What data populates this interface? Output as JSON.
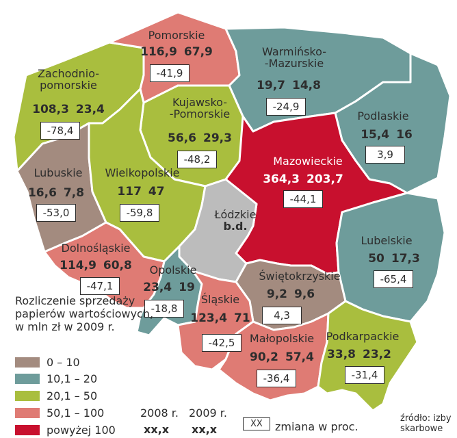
{
  "colors": {
    "c0_10": "#a38b7f",
    "c10_20": "#6e9c9b",
    "c20_50": "#a9be3e",
    "c50_100": "#df7b74",
    "c100p": "#c8102e",
    "nodata": "#bcbcbc"
  },
  "regions": [
    {
      "id": "zachodniopomorskie",
      "name_l1": "Zachodnio-",
      "name_l2": "pomorskie",
      "v2008": "108,3",
      "v2009": "23,4",
      "change": "-78,4",
      "category": "c20_50"
    },
    {
      "id": "pomorskie",
      "name_l1": "Pomorskie",
      "name_l2": "",
      "v2008": "116,9",
      "v2009": "67,9",
      "change": "-41,9",
      "category": "c50_100"
    },
    {
      "id": "warminsko",
      "name_l1": "Warmińsko-",
      "name_l2": "-Mazurskie",
      "v2008": "19,7",
      "v2009": "14,8",
      "change": "-24,9",
      "category": "c10_20"
    },
    {
      "id": "kujawsko",
      "name_l1": "Kujawsko-",
      "name_l2": "-Pomorskie",
      "v2008": "56,6",
      "v2009": "29,3",
      "change": "-48,2",
      "category": "c20_50"
    },
    {
      "id": "podlaskie",
      "name_l1": "Podlaskie",
      "name_l2": "",
      "v2008": "15,4",
      "v2009": "16",
      "change": "3,9",
      "category": "c10_20"
    },
    {
      "id": "lubuskie",
      "name_l1": "Lubuskie",
      "name_l2": "",
      "v2008": "16,6",
      "v2009": "7,8",
      "change": "-53,0",
      "category": "c0_10"
    },
    {
      "id": "wielkopolskie",
      "name_l1": "Wielkopolskie",
      "name_l2": "",
      "v2008": "117",
      "v2009": "47",
      "change": "-59,8",
      "category": "c20_50"
    },
    {
      "id": "mazowieckie",
      "name_l1": "Mazowieckie",
      "name_l2": "",
      "v2008": "364,3",
      "v2009": "203,7",
      "change": "-44,1",
      "category": "c100p"
    },
    {
      "id": "lodzkie",
      "name_l1": "Łódzkie",
      "name_l2": "b.d.",
      "v2008": "",
      "v2009": "",
      "change": "",
      "category": "nodata"
    },
    {
      "id": "lubelskie",
      "name_l1": "Lubelskie",
      "name_l2": "",
      "v2008": "50",
      "v2009": "17,3",
      "change": "-65,4",
      "category": "c10_20"
    },
    {
      "id": "dolnoslaskie",
      "name_l1": "Dolnośląskie",
      "name_l2": "",
      "v2008": "114,9",
      "v2009": "60,8",
      "change": "-47,1",
      "category": "c50_100"
    },
    {
      "id": "opolskie",
      "name_l1": "Opolskie",
      "name_l2": "",
      "v2008": "23,4",
      "v2009": "19",
      "change": "-18,8",
      "category": "c10_20"
    },
    {
      "id": "swietokrzyskie",
      "name_l1": "Świętokrzyskie",
      "name_l2": "",
      "v2008": "9,2",
      "v2009": "9,6",
      "change": "4,3",
      "category": "c0_10"
    },
    {
      "id": "slaskie",
      "name_l1": "Śląskie",
      "name_l2": "",
      "v2008": "123,4",
      "v2009": "71",
      "change": "-42,5",
      "category": "c50_100"
    },
    {
      "id": "malopolskie",
      "name_l1": "Małopolskie",
      "name_l2": "",
      "v2008": "90,2",
      "v2009": "57,4",
      "change": "-36,4",
      "category": "c50_100"
    },
    {
      "id": "podkarpackie",
      "name_l1": "Podkarpackie",
      "name_l2": "",
      "v2008": "33,8",
      "v2009": "23,2",
      "change": "-31,4",
      "category": "c20_50"
    }
  ],
  "legend": {
    "title": "Rozliczenie sprzedaży papierów wartościowych, w mln zł w 2009 r.",
    "items": [
      {
        "label": "0 – 10",
        "category": "c0_10"
      },
      {
        "label": "10,1 – 20",
        "category": "c10_20"
      },
      {
        "label": "20,1 – 50",
        "category": "c20_50"
      },
      {
        "label": "50,1 – 100",
        "category": "c50_100"
      },
      {
        "label": "powyżej 100",
        "category": "c100p"
      }
    ],
    "year1": "2008 r.",
    "year2": "2009 r.",
    "placeholder1": "xx,x",
    "placeholder2": "xx,x",
    "box_placeholder": "XX",
    "box_label": "zmiana w proc."
  },
  "source": {
    "line1": "źródło: izby",
    "line2": "skarbowe"
  }
}
